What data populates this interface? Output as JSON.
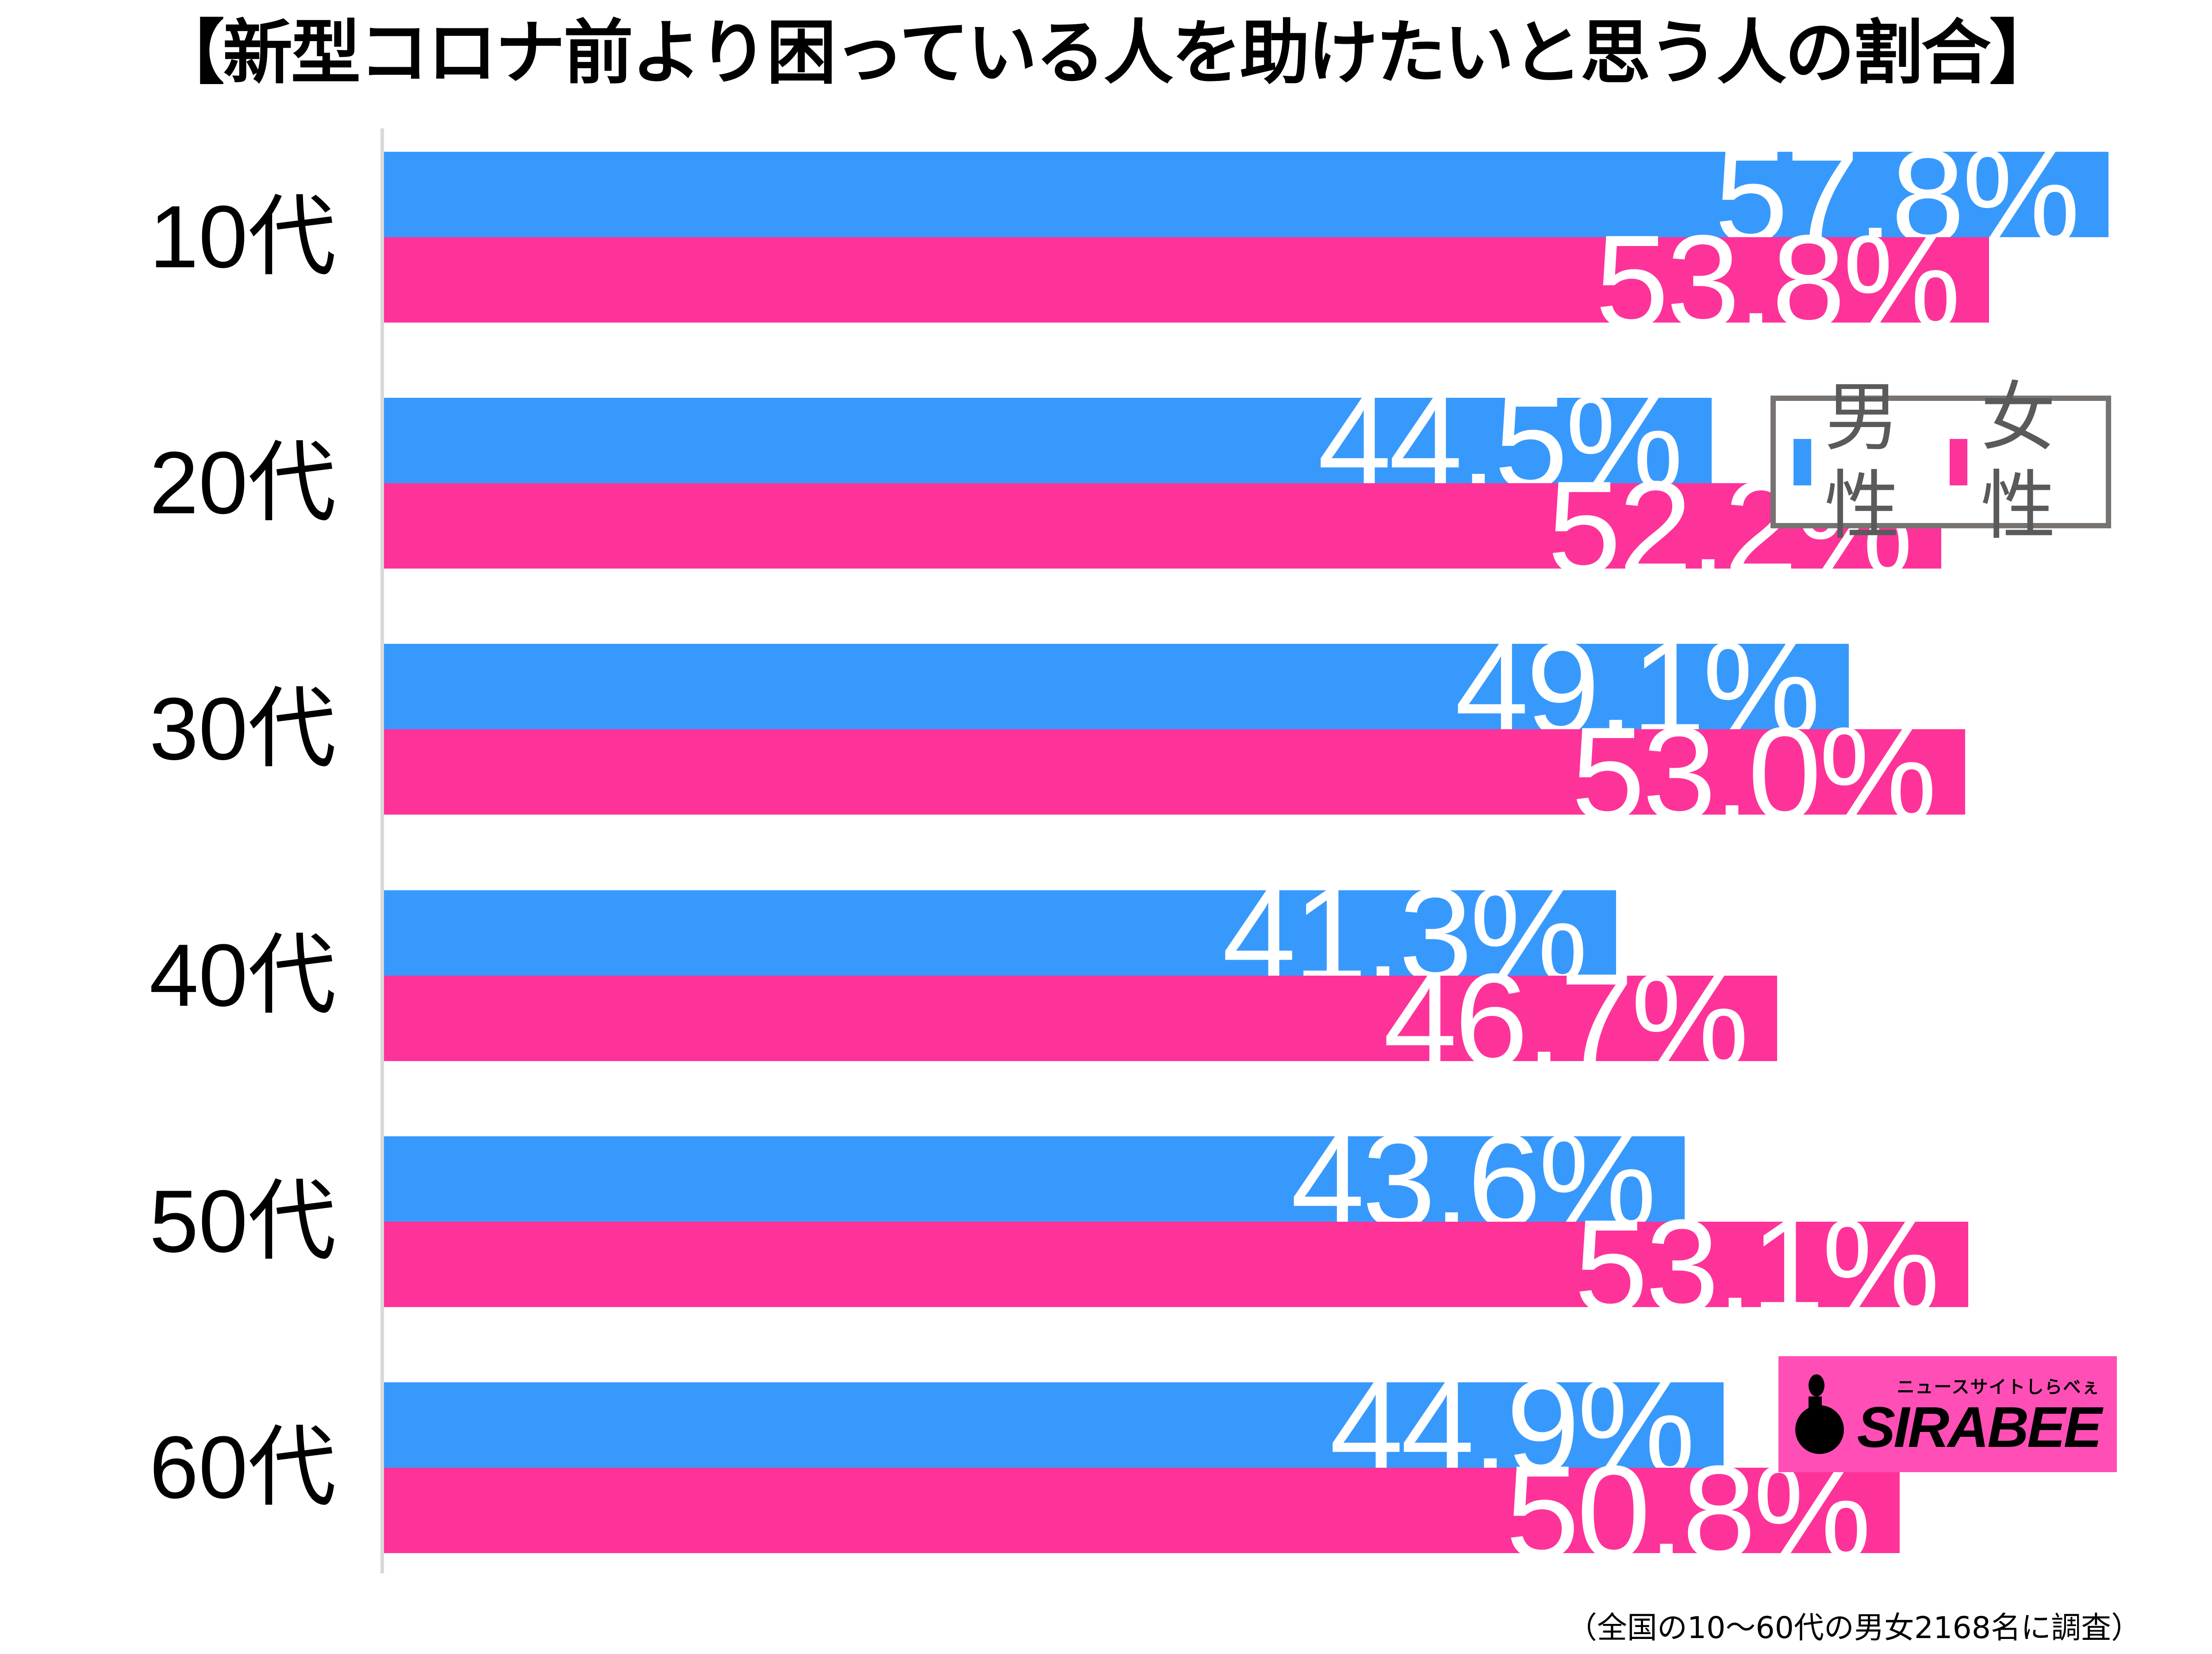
{
  "title": "【新型コロナ前より困っている人を助けたいと思う人の割合】",
  "legend": {
    "male": {
      "label": "男性",
      "color": "#3899fc"
    },
    "female": {
      "label": "女性",
      "color": "#fe3399"
    }
  },
  "rows": [
    {
      "label": "10代",
      "male": "57.8%",
      "female": "53.8%"
    },
    {
      "label": "20代",
      "male": "44.5%",
      "female": "52.2%"
    },
    {
      "label": "30代",
      "male": "49.1%",
      "female": "53.0%"
    },
    {
      "label": "40代",
      "male": "41.3%",
      "female": "46.7%"
    },
    {
      "label": "50代",
      "male": "43.6%",
      "female": "53.1%"
    },
    {
      "label": "60代",
      "male": "44.9%",
      "female": "50.8%"
    }
  ],
  "logo": {
    "sub": "ニュースサイトしらべぇ",
    "main": "SIRABEE"
  },
  "footnote": "（全国の10～60代の男女2168名に調査）",
  "chart_data": {
    "type": "bar",
    "orientation": "horizontal",
    "title": "【新型コロナ前より困っている人を助けたいと思う人の割合】",
    "categories": [
      "10代",
      "20代",
      "30代",
      "40代",
      "50代",
      "60代"
    ],
    "series": [
      {
        "name": "男性",
        "color": "#3899fc",
        "values": [
          57.8,
          44.5,
          49.1,
          41.3,
          43.6,
          44.9
        ]
      },
      {
        "name": "女性",
        "color": "#fe3399",
        "values": [
          53.8,
          52.2,
          53.0,
          46.7,
          53.1,
          50.8
        ]
      }
    ],
    "xlabel": "",
    "ylabel": "",
    "unit": "%",
    "grid": false,
    "legend_position": "upper right",
    "annotation": "（全国の10～60代の男女2168名に調査）"
  }
}
